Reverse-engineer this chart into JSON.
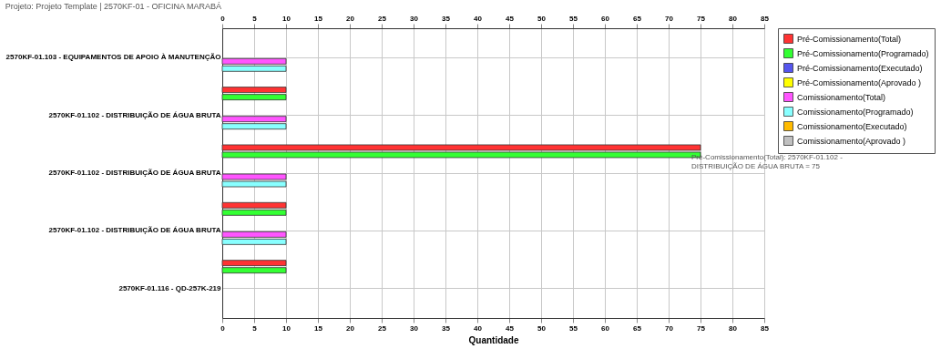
{
  "chart_data": {
    "type": "bar",
    "orientation": "horizontal",
    "title": "Projeto: Projeto Template  |  2570KF-01 - OFICINA MARABÁ",
    "xlabel": "Quantidade",
    "categories": [
      "2570KF-01.103 - EQUIPAMENTOS DE APOIO À MANUTENÇÃO",
      "2570KF-01.102 - DISTRIBUIÇÃO DE ÁGUA BRUTA",
      "2570KF-01.102 - DISTRIBUIÇÃO DE ÁGUA BRUTA",
      "2570KF-01.102 - DISTRIBUIÇÃO DE ÁGUA BRUTA",
      "2570KF-01.116 - QD-257K-219"
    ],
    "series": [
      {
        "name": "Pré-Comissionamento(Total)",
        "color": "#ff3333",
        "values": [
          null,
          10,
          75,
          10,
          10
        ]
      },
      {
        "name": "Pré-Comissionamento(Programado)",
        "color": "#33ff33",
        "values": [
          null,
          10,
          75,
          10,
          10
        ]
      },
      {
        "name": "Pré-Comissionamento(Executado)",
        "color": "#5555ee",
        "values": [
          null,
          null,
          null,
          null,
          null
        ]
      },
      {
        "name": "Pré-Comissionamento(Aprovado )",
        "color": "#ffff00",
        "values": [
          null,
          null,
          null,
          null,
          null
        ]
      },
      {
        "name": "Comissionamento(Total)",
        "color": "#ff55ff",
        "values": [
          10,
          10,
          10,
          10,
          null
        ]
      },
      {
        "name": "Comissionamento(Programado)",
        "color": "#88ffff",
        "values": [
          10,
          10,
          10,
          10,
          null
        ]
      },
      {
        "name": "Comissionamento(Executado)",
        "color": "#ffbb00",
        "values": [
          null,
          null,
          null,
          null,
          null
        ]
      },
      {
        "name": "Comissionamento(Aprovado )",
        "color": "#c0c0c0",
        "values": [
          null,
          null,
          null,
          null,
          null
        ]
      }
    ],
    "xlim": [
      0,
      85
    ],
    "xticks": [
      0,
      5,
      10,
      15,
      20,
      25,
      30,
      35,
      40,
      45,
      50,
      55,
      60,
      65,
      70,
      75,
      80,
      85
    ],
    "x2lim": [
      0,
      85
    ],
    "x2ticks": [
      0,
      5,
      10,
      15,
      20,
      25,
      30,
      35,
      40,
      45,
      50,
      55,
      60,
      65,
      70,
      75,
      80,
      85
    ],
    "grid": true,
    "legend": "top right",
    "annotations": [
      "Pré-Comissionamento(Total): 2570KF-01.102 -\nDISTRIBUIÇÃO DE ÁGUA BRUTA = 75"
    ]
  }
}
